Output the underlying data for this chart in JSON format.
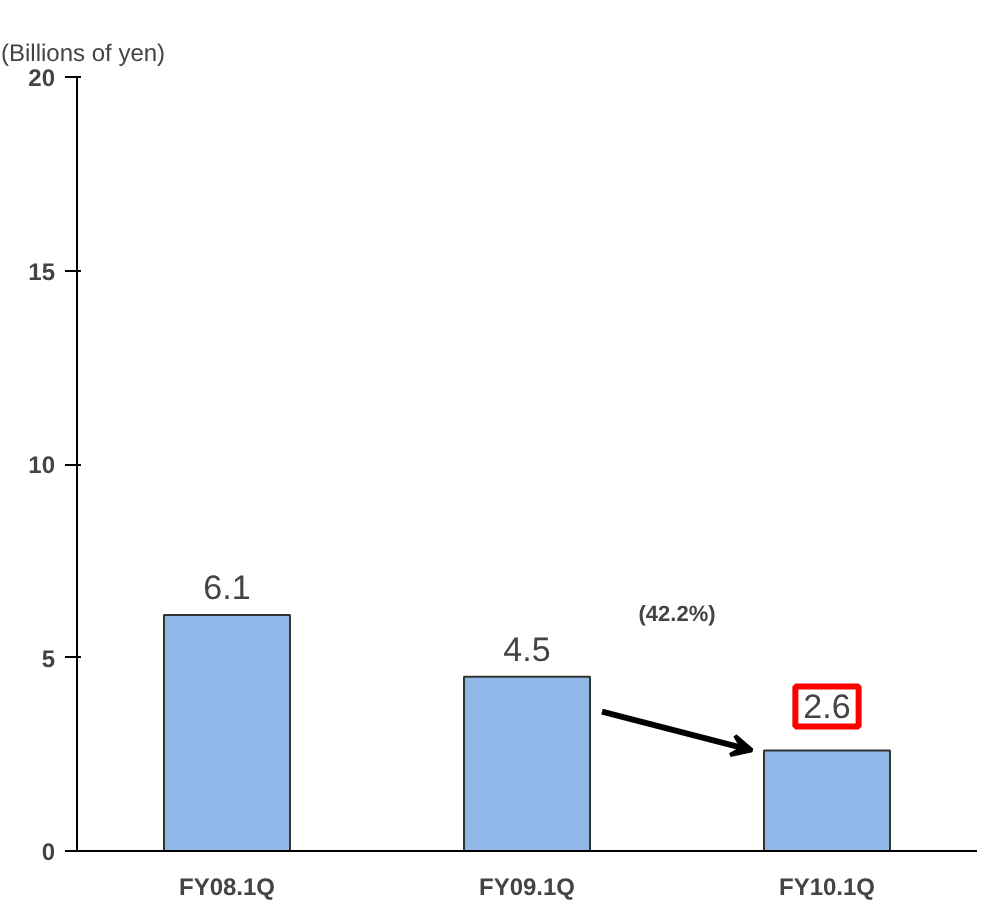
{
  "chart_data": {
    "type": "bar",
    "ylabel": "(Billions of yen)",
    "categories": [
      "FY08.1Q",
      "FY09.1Q",
      "FY10.1Q"
    ],
    "values": [
      6.1,
      4.5,
      2.6
    ],
    "color": "#8fb8e8",
    "ylim": [
      0,
      20
    ],
    "yticks": [
      0,
      5,
      10,
      15,
      20
    ],
    "grid": false,
    "data_labels": true,
    "annotations": [
      "(42.2%)"
    ]
  }
}
